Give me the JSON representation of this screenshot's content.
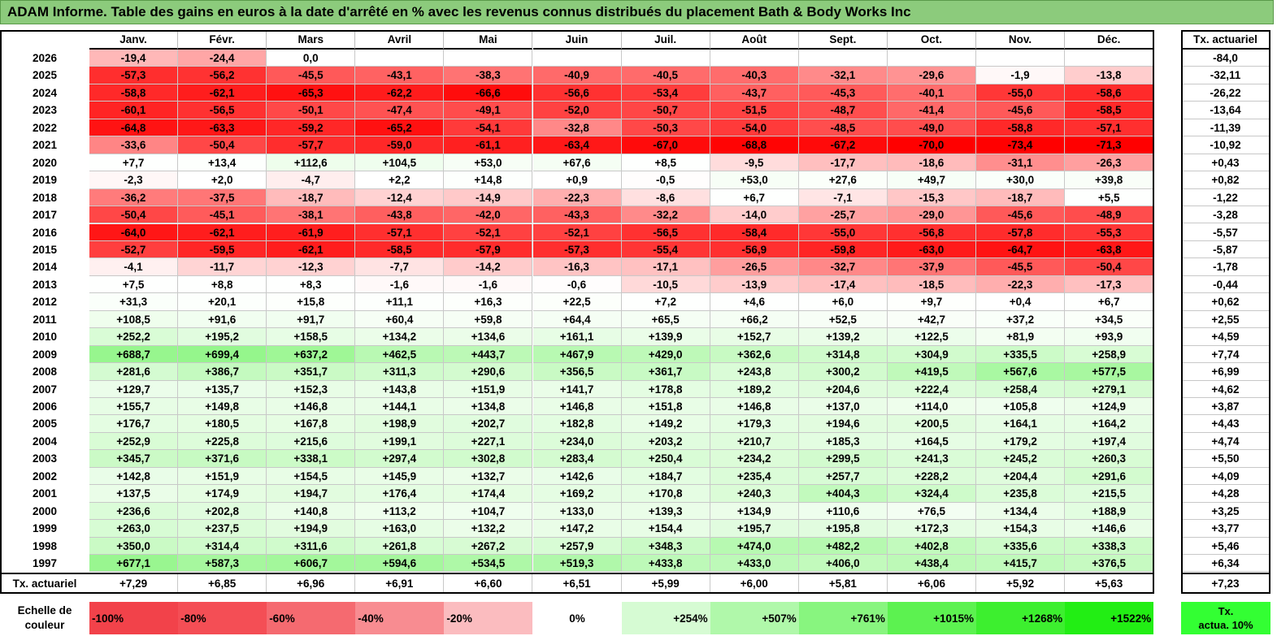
{
  "title": "ADAM Informe. Table des gains en euros à la date d'arrêté en % avec les revenus connus distribués du placement Bath & Body Works Inc",
  "months": [
    "Janv.",
    "Févr.",
    "Mars",
    "Avril",
    "Mai",
    "Juin",
    "Juil.",
    "Août",
    "Sept.",
    "Oct.",
    "Nov.",
    "Déc."
  ],
  "side_header": "Tx. actuariel",
  "rows": [
    {
      "year": "2026",
      "values": [
        "-19,4",
        "-24,4",
        "0,0",
        "",
        "",
        "",
        "",
        "",
        "",
        "",
        "",
        ""
      ],
      "rate": "-84,0"
    },
    {
      "year": "2025",
      "values": [
        "-57,3",
        "-56,2",
        "-45,5",
        "-43,1",
        "-38,3",
        "-40,9",
        "-40,5",
        "-40,3",
        "-32,1",
        "-29,6",
        "-1,9",
        "-13,8"
      ],
      "rate": "-32,11"
    },
    {
      "year": "2024",
      "values": [
        "-58,8",
        "-62,1",
        "-65,3",
        "-62,2",
        "-66,6",
        "-56,6",
        "-53,4",
        "-43,7",
        "-45,3",
        "-40,1",
        "-55,0",
        "-58,6"
      ],
      "rate": "-26,22"
    },
    {
      "year": "2023",
      "values": [
        "-60,1",
        "-56,5",
        "-50,1",
        "-47,4",
        "-49,1",
        "-52,0",
        "-50,7",
        "-51,5",
        "-48,7",
        "-41,4",
        "-45,6",
        "-58,5"
      ],
      "rate": "-13,64"
    },
    {
      "year": "2022",
      "values": [
        "-64,8",
        "-63,3",
        "-59,2",
        "-65,2",
        "-54,1",
        "-32,8",
        "-50,3",
        "-54,0",
        "-48,5",
        "-49,0",
        "-58,8",
        "-57,1"
      ],
      "rate": "-11,39"
    },
    {
      "year": "2021",
      "values": [
        "-33,6",
        "-50,4",
        "-57,7",
        "-59,0",
        "-61,1",
        "-63,4",
        "-67,0",
        "-68,8",
        "-67,2",
        "-70,0",
        "-73,4",
        "-71,3"
      ],
      "rate": "-10,92"
    },
    {
      "year": "2020",
      "values": [
        "+7,7",
        "+13,4",
        "+112,6",
        "+104,5",
        "+53,0",
        "+67,6",
        "+8,5",
        "-9,5",
        "-17,7",
        "-18,6",
        "-31,1",
        "-26,3"
      ],
      "rate": "+0,43"
    },
    {
      "year": "2019",
      "values": [
        "-2,3",
        "+2,0",
        "-4,7",
        "+2,2",
        "+14,8",
        "+0,9",
        "-0,5",
        "+53,0",
        "+27,6",
        "+49,7",
        "+30,0",
        "+39,8"
      ],
      "rate": "+0,82"
    },
    {
      "year": "2018",
      "values": [
        "-36,2",
        "-37,5",
        "-18,7",
        "-12,4",
        "-14,9",
        "-22,3",
        "-8,6",
        "+6,7",
        "-7,1",
        "-15,3",
        "-18,7",
        "+5,5"
      ],
      "rate": "-1,22"
    },
    {
      "year": "2017",
      "values": [
        "-50,4",
        "-45,1",
        "-38,1",
        "-43,8",
        "-42,0",
        "-43,3",
        "-32,2",
        "-14,0",
        "-25,7",
        "-29,0",
        "-45,6",
        "-48,9"
      ],
      "rate": "-3,28"
    },
    {
      "year": "2016",
      "values": [
        "-64,0",
        "-62,1",
        "-61,9",
        "-57,1",
        "-52,1",
        "-52,1",
        "-56,5",
        "-58,4",
        "-55,0",
        "-56,8",
        "-57,8",
        "-55,3"
      ],
      "rate": "-5,57"
    },
    {
      "year": "2015",
      "values": [
        "-52,7",
        "-59,5",
        "-62,1",
        "-58,5",
        "-57,9",
        "-57,3",
        "-55,4",
        "-56,9",
        "-59,8",
        "-63,0",
        "-64,7",
        "-63,8"
      ],
      "rate": "-5,87"
    },
    {
      "year": "2014",
      "values": [
        "-4,1",
        "-11,7",
        "-12,3",
        "-7,7",
        "-14,2",
        "-16,3",
        "-17,1",
        "-26,5",
        "-32,7",
        "-37,9",
        "-45,5",
        "-50,4"
      ],
      "rate": "-1,78"
    },
    {
      "year": "2013",
      "values": [
        "+7,5",
        "+8,8",
        "+8,3",
        "-1,6",
        "-1,6",
        "-0,6",
        "-10,5",
        "-13,9",
        "-17,4",
        "-18,5",
        "-22,3",
        "-17,3"
      ],
      "rate": "-0,44"
    },
    {
      "year": "2012",
      "values": [
        "+31,3",
        "+20,1",
        "+15,8",
        "+11,1",
        "+16,3",
        "+22,5",
        "+7,2",
        "+4,6",
        "+6,0",
        "+9,7",
        "+0,4",
        "+6,7"
      ],
      "rate": "+0,62"
    },
    {
      "year": "2011",
      "values": [
        "+108,5",
        "+91,6",
        "+91,7",
        "+60,4",
        "+59,8",
        "+64,4",
        "+65,5",
        "+66,2",
        "+52,5",
        "+42,7",
        "+37,2",
        "+34,5"
      ],
      "rate": "+2,55"
    },
    {
      "year": "2010",
      "values": [
        "+252,2",
        "+195,2",
        "+158,5",
        "+134,2",
        "+134,6",
        "+161,1",
        "+139,9",
        "+152,7",
        "+139,2",
        "+122,5",
        "+81,9",
        "+93,9"
      ],
      "rate": "+4,59"
    },
    {
      "year": "2009",
      "values": [
        "+688,7",
        "+699,4",
        "+637,2",
        "+462,5",
        "+443,7",
        "+467,9",
        "+429,0",
        "+362,6",
        "+314,8",
        "+304,9",
        "+335,5",
        "+258,9"
      ],
      "rate": "+7,74"
    },
    {
      "year": "2008",
      "values": [
        "+281,6",
        "+386,7",
        "+351,7",
        "+311,3",
        "+290,6",
        "+356,5",
        "+361,7",
        "+243,8",
        "+300,2",
        "+419,5",
        "+567,6",
        "+577,5"
      ],
      "rate": "+6,99"
    },
    {
      "year": "2007",
      "values": [
        "+129,7",
        "+135,7",
        "+152,3",
        "+143,8",
        "+151,9",
        "+141,7",
        "+178,8",
        "+189,2",
        "+204,6",
        "+222,4",
        "+258,4",
        "+279,1"
      ],
      "rate": "+4,62"
    },
    {
      "year": "2006",
      "values": [
        "+155,7",
        "+149,8",
        "+146,8",
        "+144,1",
        "+134,8",
        "+146,8",
        "+151,8",
        "+146,8",
        "+137,0",
        "+114,0",
        "+105,8",
        "+124,9"
      ],
      "rate": "+3,87"
    },
    {
      "year": "2005",
      "values": [
        "+176,7",
        "+180,5",
        "+167,8",
        "+198,9",
        "+202,7",
        "+182,8",
        "+149,2",
        "+179,3",
        "+194,6",
        "+200,5",
        "+164,1",
        "+164,2"
      ],
      "rate": "+4,43"
    },
    {
      "year": "2004",
      "values": [
        "+252,9",
        "+225,8",
        "+215,6",
        "+199,1",
        "+227,1",
        "+234,0",
        "+203,2",
        "+210,7",
        "+185,3",
        "+164,5",
        "+179,2",
        "+197,4"
      ],
      "rate": "+4,74"
    },
    {
      "year": "2003",
      "values": [
        "+345,7",
        "+371,6",
        "+338,1",
        "+297,4",
        "+302,8",
        "+283,4",
        "+250,4",
        "+234,2",
        "+299,5",
        "+241,3",
        "+245,2",
        "+260,3"
      ],
      "rate": "+5,50"
    },
    {
      "year": "2002",
      "values": [
        "+142,8",
        "+151,9",
        "+154,5",
        "+145,9",
        "+132,7",
        "+142,6",
        "+184,7",
        "+235,4",
        "+257,7",
        "+228,2",
        "+204,4",
        "+291,6"
      ],
      "rate": "+4,09"
    },
    {
      "year": "2001",
      "values": [
        "+137,5",
        "+174,9",
        "+194,7",
        "+176,4",
        "+174,4",
        "+169,2",
        "+170,8",
        "+240,3",
        "+404,3",
        "+324,4",
        "+235,8",
        "+215,5"
      ],
      "rate": "+4,28"
    },
    {
      "year": "2000",
      "values": [
        "+236,6",
        "+202,8",
        "+140,8",
        "+113,2",
        "+104,7",
        "+133,0",
        "+139,3",
        "+134,9",
        "+110,6",
        "+76,5",
        "+134,4",
        "+188,9"
      ],
      "rate": "+3,25"
    },
    {
      "year": "1999",
      "values": [
        "+263,0",
        "+237,5",
        "+194,9",
        "+163,0",
        "+132,2",
        "+147,2",
        "+154,4",
        "+195,7",
        "+195,8",
        "+172,3",
        "+154,3",
        "+146,6"
      ],
      "rate": "+3,77"
    },
    {
      "year": "1998",
      "values": [
        "+350,0",
        "+314,4",
        "+311,6",
        "+261,8",
        "+267,2",
        "+257,9",
        "+348,3",
        "+474,0",
        "+482,2",
        "+402,8",
        "+335,6",
        "+338,3"
      ],
      "rate": "+5,46"
    },
    {
      "year": "1997",
      "values": [
        "+677,1",
        "+587,3",
        "+606,7",
        "+594,6",
        "+534,5",
        "+519,3",
        "+433,8",
        "+433,0",
        "+406,0",
        "+438,4",
        "+415,7",
        "+376,5"
      ],
      "rate": "+6,34"
    }
  ],
  "footer": {
    "label": "Tx. actuariel",
    "values": [
      "+7,29",
      "+6,85",
      "+6,96",
      "+6,91",
      "+6,60",
      "+6,51",
      "+5,99",
      "+6,00",
      "+5,81",
      "+6,06",
      "+5,92",
      "+5,63"
    ],
    "rate": "+7,23"
  },
  "scale": {
    "label_line1": "Echelle de",
    "label_line2": "couleur",
    "items": [
      {
        "text": "-100%",
        "color": "#f2424a",
        "align": "left"
      },
      {
        "text": "-80%",
        "color": "#f44e55",
        "align": "left"
      },
      {
        "text": "-60%",
        "color": "#f56a70",
        "align": "left"
      },
      {
        "text": "-40%",
        "color": "#f88c91",
        "align": "left"
      },
      {
        "text": "-20%",
        "color": "#fbbcbf",
        "align": "left"
      },
      {
        "text": "0%",
        "color": "#ffffff",
        "align": "center"
      },
      {
        "text": "+254%",
        "color": "#d6fbd3",
        "align": "right"
      },
      {
        "text": "+507%",
        "color": "#b0f8aa",
        "align": "right"
      },
      {
        "text": "+761%",
        "color": "#88f57f",
        "align": "right"
      },
      {
        "text": "+1015%",
        "color": "#5cf250",
        "align": "right"
      },
      {
        "text": "+1268%",
        "color": "#3def2f",
        "align": "right"
      },
      {
        "text": "+1522%",
        "color": "#22ee14",
        "align": "right"
      }
    ],
    "side_line1": "Tx.",
    "side_line2": "actua. 10%",
    "side_color": "#33ff33"
  },
  "colors": {
    "title_bg": "#8ccb7c",
    "neg_max": "#ff0000",
    "pos_max": "#55ee4a"
  }
}
